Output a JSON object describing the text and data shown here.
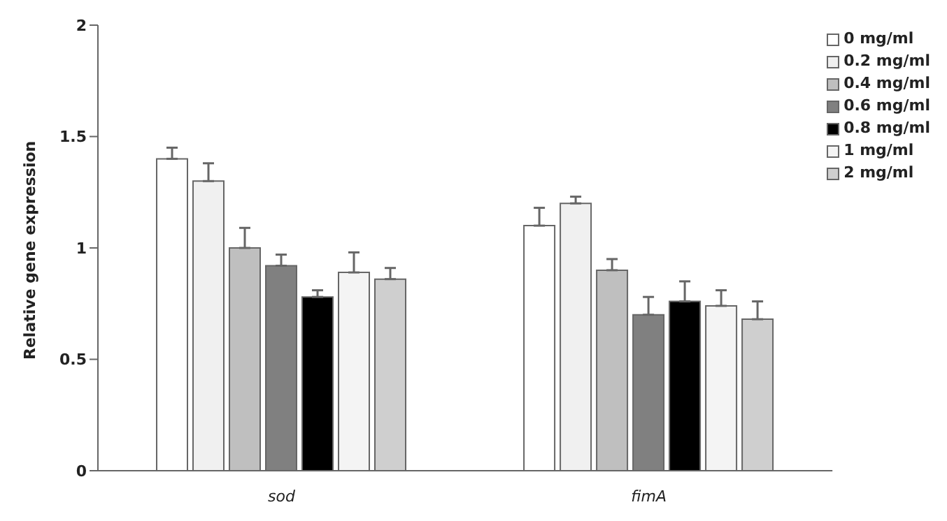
{
  "chart_data": {
    "type": "bar",
    "ylabel": "Relative gene expression",
    "categories": [
      "sod",
      "fimA"
    ],
    "series": [
      {
        "name": "0 mg/ml",
        "color": "#ffffff",
        "values": [
          1.4,
          1.1
        ],
        "errors": [
          [
            1.4,
            1.45
          ],
          [
            1.1,
            1.18
          ]
        ]
      },
      {
        "name": "0.2 mg/ml",
        "color": "#f0f0f0",
        "values": [
          1.3,
          1.2
        ],
        "errors": [
          [
            1.3,
            1.38
          ],
          [
            1.2,
            1.23
          ]
        ]
      },
      {
        "name": "0.4 mg/ml",
        "color": "#bfbfbf",
        "values": [
          1.0,
          0.9
        ],
        "errors": [
          [
            1.0,
            1.09
          ],
          [
            0.9,
            0.95
          ]
        ]
      },
      {
        "name": "0.6 mg/ml",
        "color": "#808080",
        "values": [
          0.92,
          0.7
        ],
        "errors": [
          [
            0.92,
            0.97
          ],
          [
            0.7,
            0.78
          ]
        ]
      },
      {
        "name": "0.8 mg/ml",
        "color": "#000000",
        "values": [
          0.78,
          0.76
        ],
        "errors": [
          [
            0.78,
            0.81
          ],
          [
            0.76,
            0.85
          ]
        ]
      },
      {
        "name": "1 mg/ml",
        "color": "#f4f4f4",
        "values": [
          0.89,
          0.74
        ],
        "errors": [
          [
            0.89,
            0.98
          ],
          [
            0.74,
            0.81
          ]
        ]
      },
      {
        "name": "2 mg/ml",
        "color": "#cfcfcf",
        "values": [
          0.86,
          0.68
        ],
        "errors": [
          [
            0.86,
            0.91
          ],
          [
            0.68,
            0.76
          ]
        ]
      }
    ],
    "ylim": [
      0,
      2
    ],
    "yticks": [
      0,
      0.5,
      1,
      1.5,
      2
    ],
    "grid": false,
    "legend": "top right"
  }
}
